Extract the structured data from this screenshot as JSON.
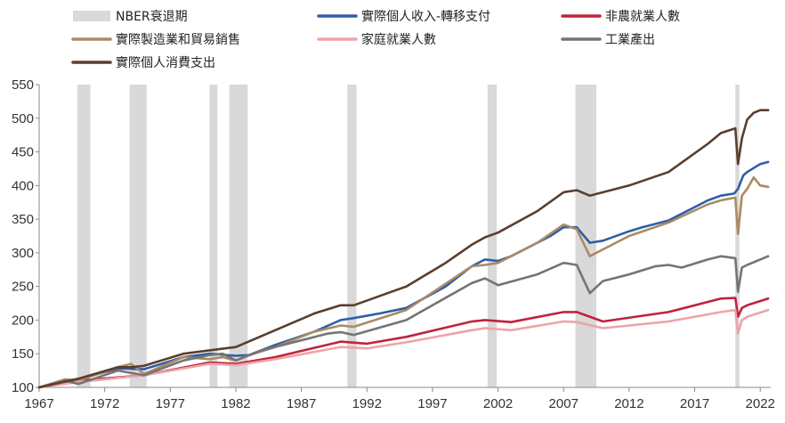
{
  "chart_data": {
    "type": "line",
    "title": "",
    "xlabel": "",
    "ylabel": "",
    "xlim": [
      1967,
      2022.8
    ],
    "ylim": [
      100,
      550
    ],
    "x_ticks": [
      1967,
      1972,
      1977,
      1982,
      1987,
      1992,
      1997,
      2002,
      2007,
      2012,
      2017,
      2022
    ],
    "y_ticks": [
      100,
      150,
      200,
      250,
      300,
      350,
      400,
      450,
      500,
      550
    ],
    "grid": false,
    "legend_position": "top",
    "recessions": {
      "name": "NBER衰退期",
      "color": "#d9d9d9",
      "periods": [
        [
          1969.9,
          1970.9
        ],
        [
          1973.9,
          1975.2
        ],
        [
          1980.0,
          1980.6
        ],
        [
          1981.5,
          1982.9
        ],
        [
          1990.5,
          1991.2
        ],
        [
          2001.2,
          2001.9
        ],
        [
          2007.9,
          2009.5
        ],
        [
          2020.1,
          2020.4
        ]
      ]
    },
    "series": [
      {
        "name": "實際個人收入-轉移支付",
        "color": "#2f5da8",
        "legend_col": 1,
        "legend_row": 0,
        "x": [
          1967,
          1969,
          1970,
          1973,
          1975,
          1978,
          1980,
          1982,
          1983,
          1985,
          1988,
          1990,
          1991,
          1993,
          1995,
          1998,
          2000,
          2001,
          2002,
          2003,
          2006,
          2007,
          2008,
          2009,
          2010,
          2012,
          2013,
          2015,
          2018,
          2019,
          2020,
          2020.3,
          2020.7,
          2021,
          2022,
          2022.6
        ],
        "values": [
          100,
          110,
          112,
          128,
          127,
          145,
          150,
          147,
          148,
          163,
          183,
          200,
          203,
          210,
          218,
          250,
          280,
          290,
          288,
          295,
          325,
          338,
          338,
          315,
          318,
          332,
          338,
          348,
          378,
          385,
          388,
          395,
          415,
          420,
          432,
          435
        ]
      },
      {
        "name": "非農就業人數",
        "color": "#c0233c",
        "legend_col": 2,
        "legend_row": 0,
        "x": [
          1967,
          1970,
          1975,
          1980,
          1982,
          1985,
          1990,
          1992,
          1995,
          2000,
          2001,
          2003,
          2007,
          2008,
          2010,
          2015,
          2019,
          2020.1,
          2020.3,
          2020.6,
          2021,
          2022.6
        ],
        "values": [
          100,
          110,
          118,
          137,
          135,
          145,
          168,
          165,
          175,
          198,
          200,
          197,
          212,
          212,
          198,
          212,
          232,
          233,
          205,
          218,
          222,
          232
        ]
      },
      {
        "name": "實際製造業和貿易銷售",
        "color": "#ab8a64",
        "legend_col": 0,
        "legend_row": 1,
        "x": [
          1967,
          1969,
          1970,
          1973,
          1974,
          1975,
          1978,
          1980,
          1981,
          1982,
          1983,
          1985,
          1988,
          1990,
          1991,
          1995,
          2000,
          2001,
          2002,
          2005,
          2007,
          2008,
          2009,
          2010,
          2012,
          2015,
          2018,
          2019,
          2020.1,
          2020.3,
          2020.6,
          2021,
          2021.5,
          2022,
          2022.6
        ],
        "values": [
          100,
          112,
          110,
          130,
          135,
          120,
          145,
          142,
          145,
          140,
          148,
          160,
          183,
          192,
          190,
          215,
          280,
          282,
          285,
          315,
          342,
          335,
          295,
          305,
          325,
          345,
          372,
          378,
          382,
          328,
          385,
          395,
          412,
          400,
          398
        ]
      },
      {
        "name": "家庭就業人數",
        "color": "#eda3aa",
        "legend_col": 1,
        "legend_row": 1,
        "x": [
          1967,
          1970,
          1975,
          1980,
          1982,
          1985,
          1990,
          1992,
          1995,
          2000,
          2001,
          2003,
          2007,
          2008,
          2010,
          2015,
          2019,
          2020.1,
          2020.3,
          2020.6,
          2021,
          2022.6
        ],
        "values": [
          100,
          108,
          118,
          135,
          133,
          142,
          160,
          158,
          167,
          185,
          188,
          185,
          198,
          197,
          188,
          198,
          212,
          215,
          180,
          200,
          205,
          215
        ]
      },
      {
        "name": "工業產出",
        "color": "#747474",
        "legend_col": 2,
        "legend_row": 1,
        "x": [
          1967,
          1969,
          1970,
          1973,
          1975,
          1978,
          1980,
          1981,
          1982,
          1984,
          1989,
          1990,
          1991,
          1995,
          2000,
          2001,
          2002,
          2005,
          2007,
          2008,
          2009,
          2010,
          2012,
          2014,
          2015,
          2016,
          2018,
          2019,
          2020.1,
          2020.3,
          2020.6,
          2021,
          2022,
          2022.6
        ],
        "values": [
          100,
          110,
          105,
          125,
          118,
          140,
          148,
          150,
          140,
          155,
          180,
          182,
          178,
          200,
          255,
          262,
          252,
          268,
          285,
          282,
          240,
          258,
          268,
          280,
          282,
          278,
          290,
          295,
          292,
          242,
          278,
          282,
          290,
          295
        ]
      },
      {
        "name": "實際個人消費支出",
        "color": "#5a3e2e",
        "legend_col": 0,
        "legend_row": 2,
        "x": [
          1967,
          1970,
          1973,
          1974,
          1975,
          1978,
          1980,
          1982,
          1985,
          1988,
          1990,
          1991,
          1995,
          1998,
          2000,
          2001,
          2002,
          2005,
          2007,
          2008,
          2009,
          2010,
          2012,
          2015,
          2018,
          2019,
          2020.1,
          2020.3,
          2020.6,
          2021,
          2021.5,
          2022,
          2022.6
        ],
        "values": [
          100,
          113,
          130,
          130,
          132,
          150,
          155,
          160,
          185,
          210,
          222,
          222,
          250,
          285,
          312,
          323,
          330,
          362,
          390,
          393,
          385,
          390,
          400,
          420,
          462,
          478,
          485,
          432,
          470,
          498,
          508,
          512,
          512
        ]
      }
    ]
  }
}
